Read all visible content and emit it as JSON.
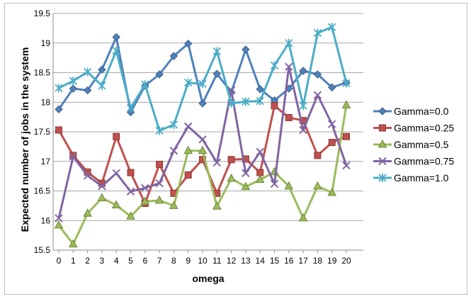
{
  "chart_data": {
    "type": "line",
    "title": "",
    "xlabel": "omega",
    "ylabel": "Expected number of jobs in the system",
    "x": [
      0,
      1,
      2,
      3,
      4,
      5,
      6,
      7,
      8,
      9,
      10,
      11,
      12,
      13,
      14,
      15,
      16,
      17,
      18,
      19,
      20
    ],
    "xticks": [
      "0",
      "1",
      "2",
      "3",
      "4",
      "5",
      "6",
      "7",
      "8",
      "9",
      "10",
      "11",
      "12",
      "13",
      "14",
      "15",
      "16",
      "17",
      "18",
      "19",
      "20"
    ],
    "ylim": [
      15.5,
      19.5
    ],
    "yticks": [
      "15.5",
      "16",
      "16.5",
      "17",
      "17.5",
      "18",
      "18.5",
      "19",
      "19.5"
    ],
    "grid": "horizontal",
    "legend_position": "right",
    "series": [
      {
        "name": "Gamma=0.0",
        "color": "#4F81BD",
        "marker": "diamond",
        "values": [
          17.88,
          18.23,
          18.2,
          18.55,
          19.1,
          17.83,
          18.28,
          18.47,
          18.78,
          18.99,
          17.98,
          18.48,
          18.17,
          18.89,
          18.22,
          18.03,
          18.23,
          18.53,
          18.47,
          18.25,
          18.33
        ]
      },
      {
        "name": "Gamma=0.25",
        "color": "#C0504D",
        "marker": "square",
        "values": [
          17.53,
          17.1,
          16.82,
          16.63,
          17.42,
          16.81,
          16.29,
          16.95,
          16.46,
          16.77,
          17.03,
          16.46,
          17.03,
          17.04,
          16.81,
          17.94,
          17.74,
          17.69,
          17.1,
          17.32,
          17.42
        ]
      },
      {
        "name": "Gamma=0.5",
        "color": "#9BBB59",
        "marker": "triangle",
        "values": [
          15.92,
          15.6,
          16.12,
          16.38,
          16.26,
          16.07,
          16.32,
          16.34,
          16.25,
          17.18,
          17.18,
          16.24,
          16.71,
          16.57,
          16.69,
          16.82,
          16.58,
          16.04,
          16.58,
          16.47,
          17.95
        ]
      },
      {
        "name": "Gamma=0.75",
        "color": "#8064A2",
        "marker": "x",
        "values": [
          16.04,
          17.08,
          16.76,
          16.58,
          16.8,
          16.49,
          16.55,
          16.63,
          17.18,
          17.59,
          17.37,
          16.98,
          18.2,
          16.8,
          17.16,
          16.62,
          18.6,
          17.53,
          18.12,
          17.63,
          16.93
        ]
      },
      {
        "name": "Gamma=1.0",
        "color": "#4BACC6",
        "marker": "star",
        "values": [
          18.24,
          18.36,
          18.51,
          18.28,
          18.87,
          17.9,
          18.3,
          17.52,
          17.62,
          18.33,
          18.31,
          18.86,
          17.98,
          18.01,
          18.02,
          18.62,
          19.0,
          17.94,
          19.17,
          19.27,
          18.32
        ]
      }
    ]
  }
}
